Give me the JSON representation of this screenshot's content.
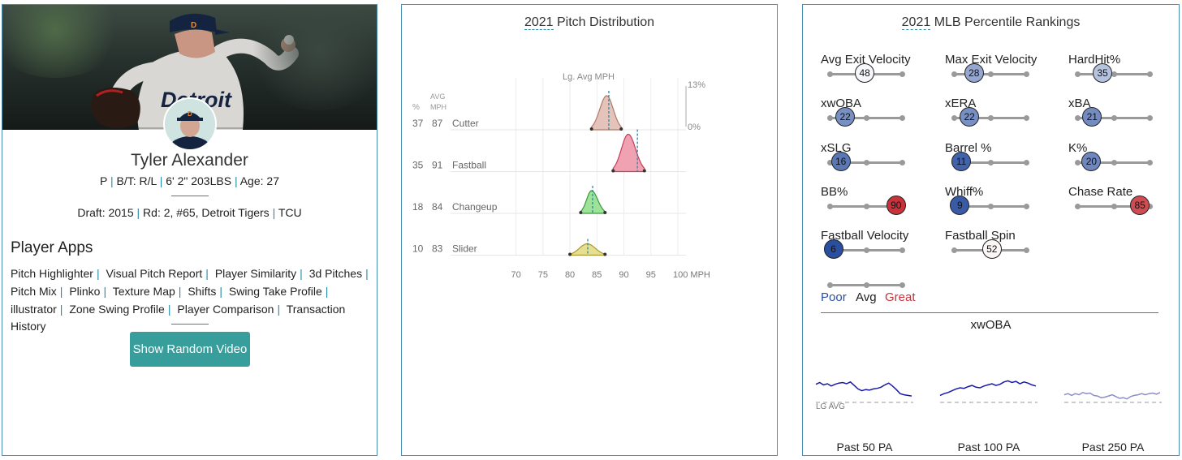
{
  "player": {
    "name": "Tyler Alexander",
    "bio": {
      "position": "P",
      "bats_throws": "B/T: R/L",
      "height_weight": "6' 2\" 203LBS",
      "age": "Age: 27"
    },
    "draft": {
      "year": "Draft: 2015",
      "round": "Rd: 2, #65, Detroit Tigers",
      "school": "TCU"
    },
    "jersey_text": "Detroit"
  },
  "apps": {
    "title": "Player Apps",
    "items": [
      "Pitch Highlighter",
      "Visual Pitch Report",
      "Player Similarity",
      "3d Pitches",
      "Pitch Mix",
      "Plinko",
      "Texture Map",
      "Shifts",
      "Swing Take Profile",
      "illustrator",
      "Zone Swing Profile",
      "Player Comparison",
      "Transaction History"
    ],
    "random_video_label": "Show Random Video"
  },
  "pitch_distribution": {
    "title_year": "2021",
    "title_rest": " Pitch Distribution",
    "lg_avg_label": "Lg. Avg MPH",
    "col_pct": "%",
    "col_avg": "AVG",
    "col_mph": "MPH",
    "scale_max": "13%",
    "scale_min": "0%",
    "x_ticks": [
      "70",
      "75",
      "80",
      "85",
      "90",
      "95",
      "100 MPH"
    ],
    "pitches": [
      {
        "pct": "37",
        "avg": "87",
        "name": "Cutter",
        "color": "#b07a6e",
        "fill": "#e4c3ba",
        "lo": 84,
        "peak": 86.8,
        "hi": 89.5,
        "lg": 87.2,
        "height": 0.42
      },
      {
        "pct": "35",
        "avg": "91",
        "name": "Fastball",
        "color": "#c0405a",
        "fill": "#f0a2b3",
        "lo": 88,
        "peak": 90.8,
        "hi": 93.8,
        "lg": 92.5,
        "height": 0.46
      },
      {
        "pct": "18",
        "avg": "84",
        "name": "Changeup",
        "color": "#3a9a3a",
        "fill": "#9ee29a",
        "lo": 82,
        "peak": 84,
        "hi": 86.5,
        "lg": 84.2,
        "height": 0.28
      },
      {
        "pct": "10",
        "avg": "83",
        "name": "Slider",
        "color": "#a89a2a",
        "fill": "#e6df92",
        "lo": 80,
        "peak": 83.2,
        "hi": 86.5,
        "lg": 83.3,
        "height": 0.14
      }
    ]
  },
  "percentiles": {
    "title_year": "2021",
    "title_rest": " MLB Percentile Rankings",
    "items": [
      {
        "label": "Avg Exit Velocity",
        "value": 48
      },
      {
        "label": "Max Exit Velocity",
        "value": 28
      },
      {
        "label": "HardHit%",
        "value": 35
      },
      {
        "label": "xwOBA",
        "value": 22
      },
      {
        "label": "xERA",
        "value": 22
      },
      {
        "label": "xBA",
        "value": 21
      },
      {
        "label": "xSLG",
        "value": 16
      },
      {
        "label": "Barrel %",
        "value": 11
      },
      {
        "label": "K%",
        "value": 20
      },
      {
        "label": "BB%",
        "value": 90
      },
      {
        "label": "Whiff%",
        "value": 9
      },
      {
        "label": "Chase Rate",
        "value": 85
      },
      {
        "label": "Fastball Velocity",
        "value": 6
      },
      {
        "label": "Fastball Spin",
        "value": 52
      }
    ],
    "legend": {
      "poor": "Poor",
      "avg": "Avg",
      "great": "Great"
    },
    "colors": {
      "poor": "#2a4fa0",
      "great": "#c8323a"
    }
  },
  "xwoba": {
    "title": "xwOBA",
    "lg_avg_label": "LG AVG",
    "windows": [
      {
        "label": "Past 50 PA",
        "color": "#1a1aa8",
        "values": [
          0.62,
          0.68,
          0.6,
          0.64,
          0.56,
          0.62,
          0.66,
          0.68,
          0.64,
          0.7,
          0.58,
          0.46,
          0.4,
          0.44,
          0.42,
          0.46,
          0.48,
          0.52,
          0.6,
          0.66,
          0.56,
          0.44,
          0.3,
          0.26,
          0.24,
          0.22
        ]
      },
      {
        "label": "Past 100 PA",
        "color": "#1a1aa8",
        "values": [
          0.24,
          0.3,
          0.34,
          0.4,
          0.46,
          0.5,
          0.48,
          0.54,
          0.58,
          0.52,
          0.5,
          0.56,
          0.6,
          0.64,
          0.58,
          0.62,
          0.7,
          0.74,
          0.68,
          0.72,
          0.64,
          0.7,
          0.66,
          0.6,
          0.56
        ]
      },
      {
        "label": "Past 250 PA",
        "color": "#8e8ec8",
        "values": [
          0.26,
          0.3,
          0.24,
          0.3,
          0.26,
          0.34,
          0.3,
          0.32,
          0.24,
          0.22,
          0.16,
          0.18,
          0.22,
          0.26,
          0.2,
          0.14,
          0.16,
          0.12,
          0.2,
          0.24,
          0.26,
          0.3,
          0.26,
          0.3,
          0.32,
          0.28,
          0.34
        ]
      }
    ]
  }
}
